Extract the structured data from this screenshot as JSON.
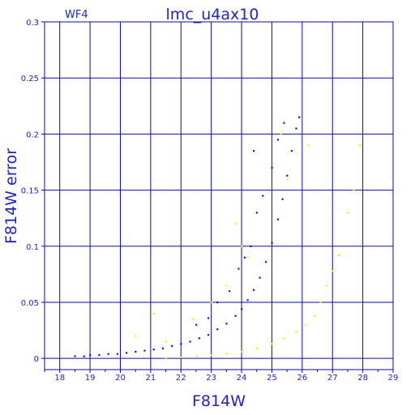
{
  "chart_data": {
    "type": "scatter",
    "title": "lmc_u4ax10",
    "panel_label": "WF4",
    "xlabel": "F814W",
    "ylabel": "F814W error",
    "xlim": [
      17.5,
      29
    ],
    "ylim": [
      -0.01,
      0.3
    ],
    "x_ticks": [
      "18",
      "19",
      "20",
      "21",
      "22",
      "23",
      "24",
      "25",
      "26",
      "27",
      "28",
      "29"
    ],
    "y_ticks": [
      "0",
      "0.05",
      "0.1",
      "0.15",
      "0.2",
      "0.25",
      "0.3"
    ],
    "grid": true,
    "colors": {
      "frame": "#0a0aa8",
      "title": "#2222cc",
      "series_blue": "#1515d8",
      "series_yellow": "#f2f200"
    },
    "series": [
      {
        "color": "blue",
        "points": [
          [
            18.5,
            0.002
          ],
          [
            18.8,
            0.002
          ],
          [
            19.0,
            0.003
          ],
          [
            19.3,
            0.003
          ],
          [
            19.6,
            0.004
          ],
          [
            19.9,
            0.004
          ],
          [
            20.2,
            0.005
          ],
          [
            20.5,
            0.006
          ],
          [
            20.8,
            0.007
          ],
          [
            21.1,
            0.008
          ],
          [
            21.4,
            0.009
          ],
          [
            21.7,
            0.011
          ],
          [
            22.0,
            0.013
          ],
          [
            22.3,
            0.015
          ],
          [
            22.6,
            0.018
          ],
          [
            22.9,
            0.021
          ],
          [
            23.2,
            0.026
          ],
          [
            23.5,
            0.031
          ],
          [
            23.8,
            0.038
          ],
          [
            24.0,
            0.044
          ],
          [
            24.2,
            0.052
          ],
          [
            24.4,
            0.061
          ],
          [
            24.6,
            0.072
          ],
          [
            24.8,
            0.086
          ],
          [
            25.0,
            0.103
          ],
          [
            25.2,
            0.124
          ],
          [
            25.35,
            0.142
          ],
          [
            25.5,
            0.163
          ],
          [
            25.65,
            0.185
          ],
          [
            25.8,
            0.205
          ],
          [
            25.9,
            0.215
          ],
          [
            22.5,
            0.03
          ],
          [
            22.9,
            0.036
          ],
          [
            23.2,
            0.05
          ],
          [
            23.6,
            0.06
          ],
          [
            23.9,
            0.08
          ],
          [
            24.1,
            0.09
          ],
          [
            24.3,
            0.1
          ],
          [
            24.5,
            0.13
          ],
          [
            24.7,
            0.145
          ],
          [
            24.4,
            0.185
          ],
          [
            25.0,
            0.17
          ],
          [
            25.2,
            0.195
          ],
          [
            25.4,
            0.21
          ]
        ]
      },
      {
        "color": "yellow",
        "points": [
          [
            21.5,
            0.0
          ],
          [
            22.0,
            0.001
          ],
          [
            22.5,
            0.002
          ],
          [
            23.0,
            0.003
          ],
          [
            23.5,
            0.004
          ],
          [
            24.0,
            0.006
          ],
          [
            24.5,
            0.009
          ],
          [
            25.0,
            0.013
          ],
          [
            25.4,
            0.018
          ],
          [
            25.8,
            0.024
          ],
          [
            26.1,
            0.03
          ],
          [
            26.4,
            0.038
          ],
          [
            26.6,
            0.05
          ],
          [
            26.8,
            0.065
          ],
          [
            27.0,
            0.078
          ],
          [
            27.2,
            0.092
          ],
          [
            20.5,
            0.02
          ],
          [
            21.1,
            0.04
          ],
          [
            21.5,
            0.015
          ],
          [
            22.4,
            0.035
          ],
          [
            23.0,
            0.05
          ],
          [
            23.5,
            0.065
          ],
          [
            23.8,
            0.12
          ],
          [
            24.0,
            0.1
          ],
          [
            24.2,
            0.09
          ],
          [
            25.3,
            0.2
          ],
          [
            25.5,
            0.16
          ],
          [
            26.2,
            0.19
          ],
          [
            27.5,
            0.13
          ],
          [
            27.7,
            0.15
          ],
          [
            27.9,
            0.19
          ]
        ]
      }
    ]
  }
}
